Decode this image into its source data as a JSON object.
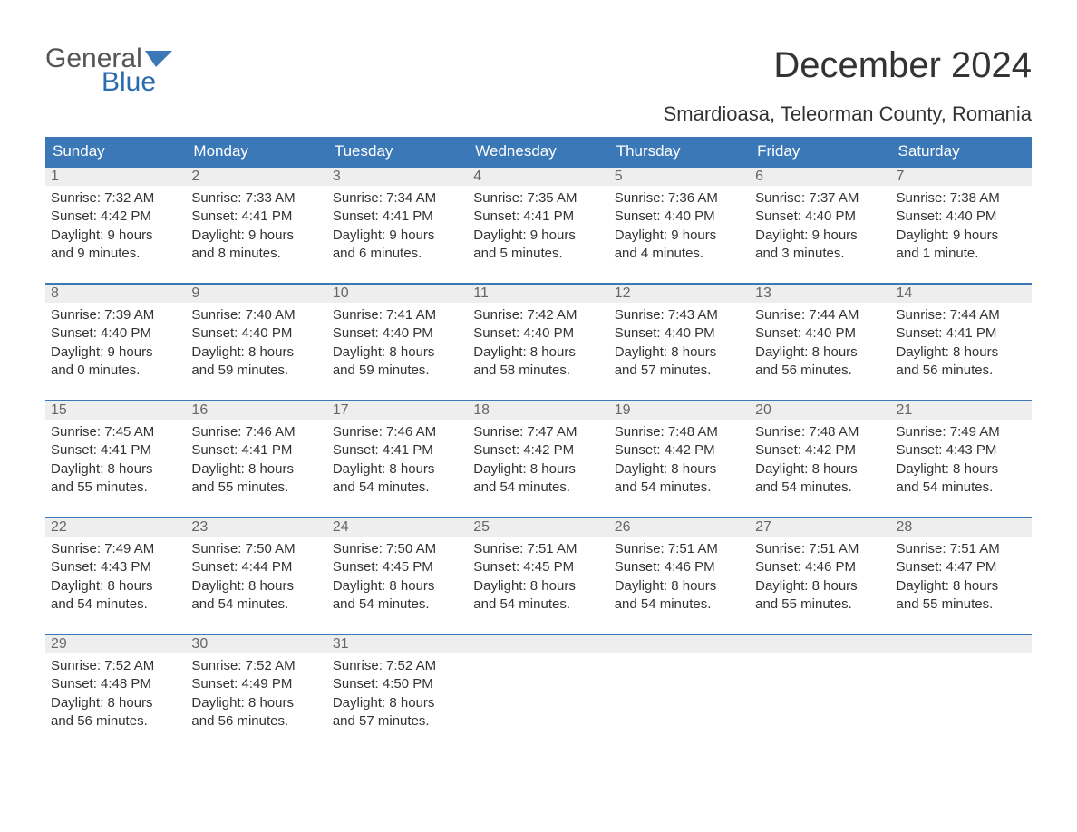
{
  "logo": {
    "text_general": "General",
    "text_blue": "Blue",
    "icon_color": "#3b78b8",
    "blue_text_color": "#2a6bb0"
  },
  "title": "December 2024",
  "location": "Smardioasa, Teleorman County, Romania",
  "colors": {
    "header_bg": "#3b78b8",
    "header_text": "#ffffff",
    "daynum_bg": "#eeeeee",
    "daynum_text": "#666666",
    "body_text": "#333333",
    "week_border": "#3b78b8",
    "page_bg": "#ffffff"
  },
  "day_names": [
    "Sunday",
    "Monday",
    "Tuesday",
    "Wednesday",
    "Thursday",
    "Friday",
    "Saturday"
  ],
  "weeks": [
    [
      {
        "n": "1",
        "sr": "Sunrise: 7:32 AM",
        "ss": "Sunset: 4:42 PM",
        "d1": "Daylight: 9 hours",
        "d2": "and 9 minutes."
      },
      {
        "n": "2",
        "sr": "Sunrise: 7:33 AM",
        "ss": "Sunset: 4:41 PM",
        "d1": "Daylight: 9 hours",
        "d2": "and 8 minutes."
      },
      {
        "n": "3",
        "sr": "Sunrise: 7:34 AM",
        "ss": "Sunset: 4:41 PM",
        "d1": "Daylight: 9 hours",
        "d2": "and 6 minutes."
      },
      {
        "n": "4",
        "sr": "Sunrise: 7:35 AM",
        "ss": "Sunset: 4:41 PM",
        "d1": "Daylight: 9 hours",
        "d2": "and 5 minutes."
      },
      {
        "n": "5",
        "sr": "Sunrise: 7:36 AM",
        "ss": "Sunset: 4:40 PM",
        "d1": "Daylight: 9 hours",
        "d2": "and 4 minutes."
      },
      {
        "n": "6",
        "sr": "Sunrise: 7:37 AM",
        "ss": "Sunset: 4:40 PM",
        "d1": "Daylight: 9 hours",
        "d2": "and 3 minutes."
      },
      {
        "n": "7",
        "sr": "Sunrise: 7:38 AM",
        "ss": "Sunset: 4:40 PM",
        "d1": "Daylight: 9 hours",
        "d2": "and 1 minute."
      }
    ],
    [
      {
        "n": "8",
        "sr": "Sunrise: 7:39 AM",
        "ss": "Sunset: 4:40 PM",
        "d1": "Daylight: 9 hours",
        "d2": "and 0 minutes."
      },
      {
        "n": "9",
        "sr": "Sunrise: 7:40 AM",
        "ss": "Sunset: 4:40 PM",
        "d1": "Daylight: 8 hours",
        "d2": "and 59 minutes."
      },
      {
        "n": "10",
        "sr": "Sunrise: 7:41 AM",
        "ss": "Sunset: 4:40 PM",
        "d1": "Daylight: 8 hours",
        "d2": "and 59 minutes."
      },
      {
        "n": "11",
        "sr": "Sunrise: 7:42 AM",
        "ss": "Sunset: 4:40 PM",
        "d1": "Daylight: 8 hours",
        "d2": "and 58 minutes."
      },
      {
        "n": "12",
        "sr": "Sunrise: 7:43 AM",
        "ss": "Sunset: 4:40 PM",
        "d1": "Daylight: 8 hours",
        "d2": "and 57 minutes."
      },
      {
        "n": "13",
        "sr": "Sunrise: 7:44 AM",
        "ss": "Sunset: 4:40 PM",
        "d1": "Daylight: 8 hours",
        "d2": "and 56 minutes."
      },
      {
        "n": "14",
        "sr": "Sunrise: 7:44 AM",
        "ss": "Sunset: 4:41 PM",
        "d1": "Daylight: 8 hours",
        "d2": "and 56 minutes."
      }
    ],
    [
      {
        "n": "15",
        "sr": "Sunrise: 7:45 AM",
        "ss": "Sunset: 4:41 PM",
        "d1": "Daylight: 8 hours",
        "d2": "and 55 minutes."
      },
      {
        "n": "16",
        "sr": "Sunrise: 7:46 AM",
        "ss": "Sunset: 4:41 PM",
        "d1": "Daylight: 8 hours",
        "d2": "and 55 minutes."
      },
      {
        "n": "17",
        "sr": "Sunrise: 7:46 AM",
        "ss": "Sunset: 4:41 PM",
        "d1": "Daylight: 8 hours",
        "d2": "and 54 minutes."
      },
      {
        "n": "18",
        "sr": "Sunrise: 7:47 AM",
        "ss": "Sunset: 4:42 PM",
        "d1": "Daylight: 8 hours",
        "d2": "and 54 minutes."
      },
      {
        "n": "19",
        "sr": "Sunrise: 7:48 AM",
        "ss": "Sunset: 4:42 PM",
        "d1": "Daylight: 8 hours",
        "d2": "and 54 minutes."
      },
      {
        "n": "20",
        "sr": "Sunrise: 7:48 AM",
        "ss": "Sunset: 4:42 PM",
        "d1": "Daylight: 8 hours",
        "d2": "and 54 minutes."
      },
      {
        "n": "21",
        "sr": "Sunrise: 7:49 AM",
        "ss": "Sunset: 4:43 PM",
        "d1": "Daylight: 8 hours",
        "d2": "and 54 minutes."
      }
    ],
    [
      {
        "n": "22",
        "sr": "Sunrise: 7:49 AM",
        "ss": "Sunset: 4:43 PM",
        "d1": "Daylight: 8 hours",
        "d2": "and 54 minutes."
      },
      {
        "n": "23",
        "sr": "Sunrise: 7:50 AM",
        "ss": "Sunset: 4:44 PM",
        "d1": "Daylight: 8 hours",
        "d2": "and 54 minutes."
      },
      {
        "n": "24",
        "sr": "Sunrise: 7:50 AM",
        "ss": "Sunset: 4:45 PM",
        "d1": "Daylight: 8 hours",
        "d2": "and 54 minutes."
      },
      {
        "n": "25",
        "sr": "Sunrise: 7:51 AM",
        "ss": "Sunset: 4:45 PM",
        "d1": "Daylight: 8 hours",
        "d2": "and 54 minutes."
      },
      {
        "n": "26",
        "sr": "Sunrise: 7:51 AM",
        "ss": "Sunset: 4:46 PM",
        "d1": "Daylight: 8 hours",
        "d2": "and 54 minutes."
      },
      {
        "n": "27",
        "sr": "Sunrise: 7:51 AM",
        "ss": "Sunset: 4:46 PM",
        "d1": "Daylight: 8 hours",
        "d2": "and 55 minutes."
      },
      {
        "n": "28",
        "sr": "Sunrise: 7:51 AM",
        "ss": "Sunset: 4:47 PM",
        "d1": "Daylight: 8 hours",
        "d2": "and 55 minutes."
      }
    ],
    [
      {
        "n": "29",
        "sr": "Sunrise: 7:52 AM",
        "ss": "Sunset: 4:48 PM",
        "d1": "Daylight: 8 hours",
        "d2": "and 56 minutes."
      },
      {
        "n": "30",
        "sr": "Sunrise: 7:52 AM",
        "ss": "Sunset: 4:49 PM",
        "d1": "Daylight: 8 hours",
        "d2": "and 56 minutes."
      },
      {
        "n": "31",
        "sr": "Sunrise: 7:52 AM",
        "ss": "Sunset: 4:50 PM",
        "d1": "Daylight: 8 hours",
        "d2": "and 57 minutes."
      },
      {
        "n": "",
        "sr": "",
        "ss": "",
        "d1": "",
        "d2": ""
      },
      {
        "n": "",
        "sr": "",
        "ss": "",
        "d1": "",
        "d2": ""
      },
      {
        "n": "",
        "sr": "",
        "ss": "",
        "d1": "",
        "d2": ""
      },
      {
        "n": "",
        "sr": "",
        "ss": "",
        "d1": "",
        "d2": ""
      }
    ]
  ]
}
